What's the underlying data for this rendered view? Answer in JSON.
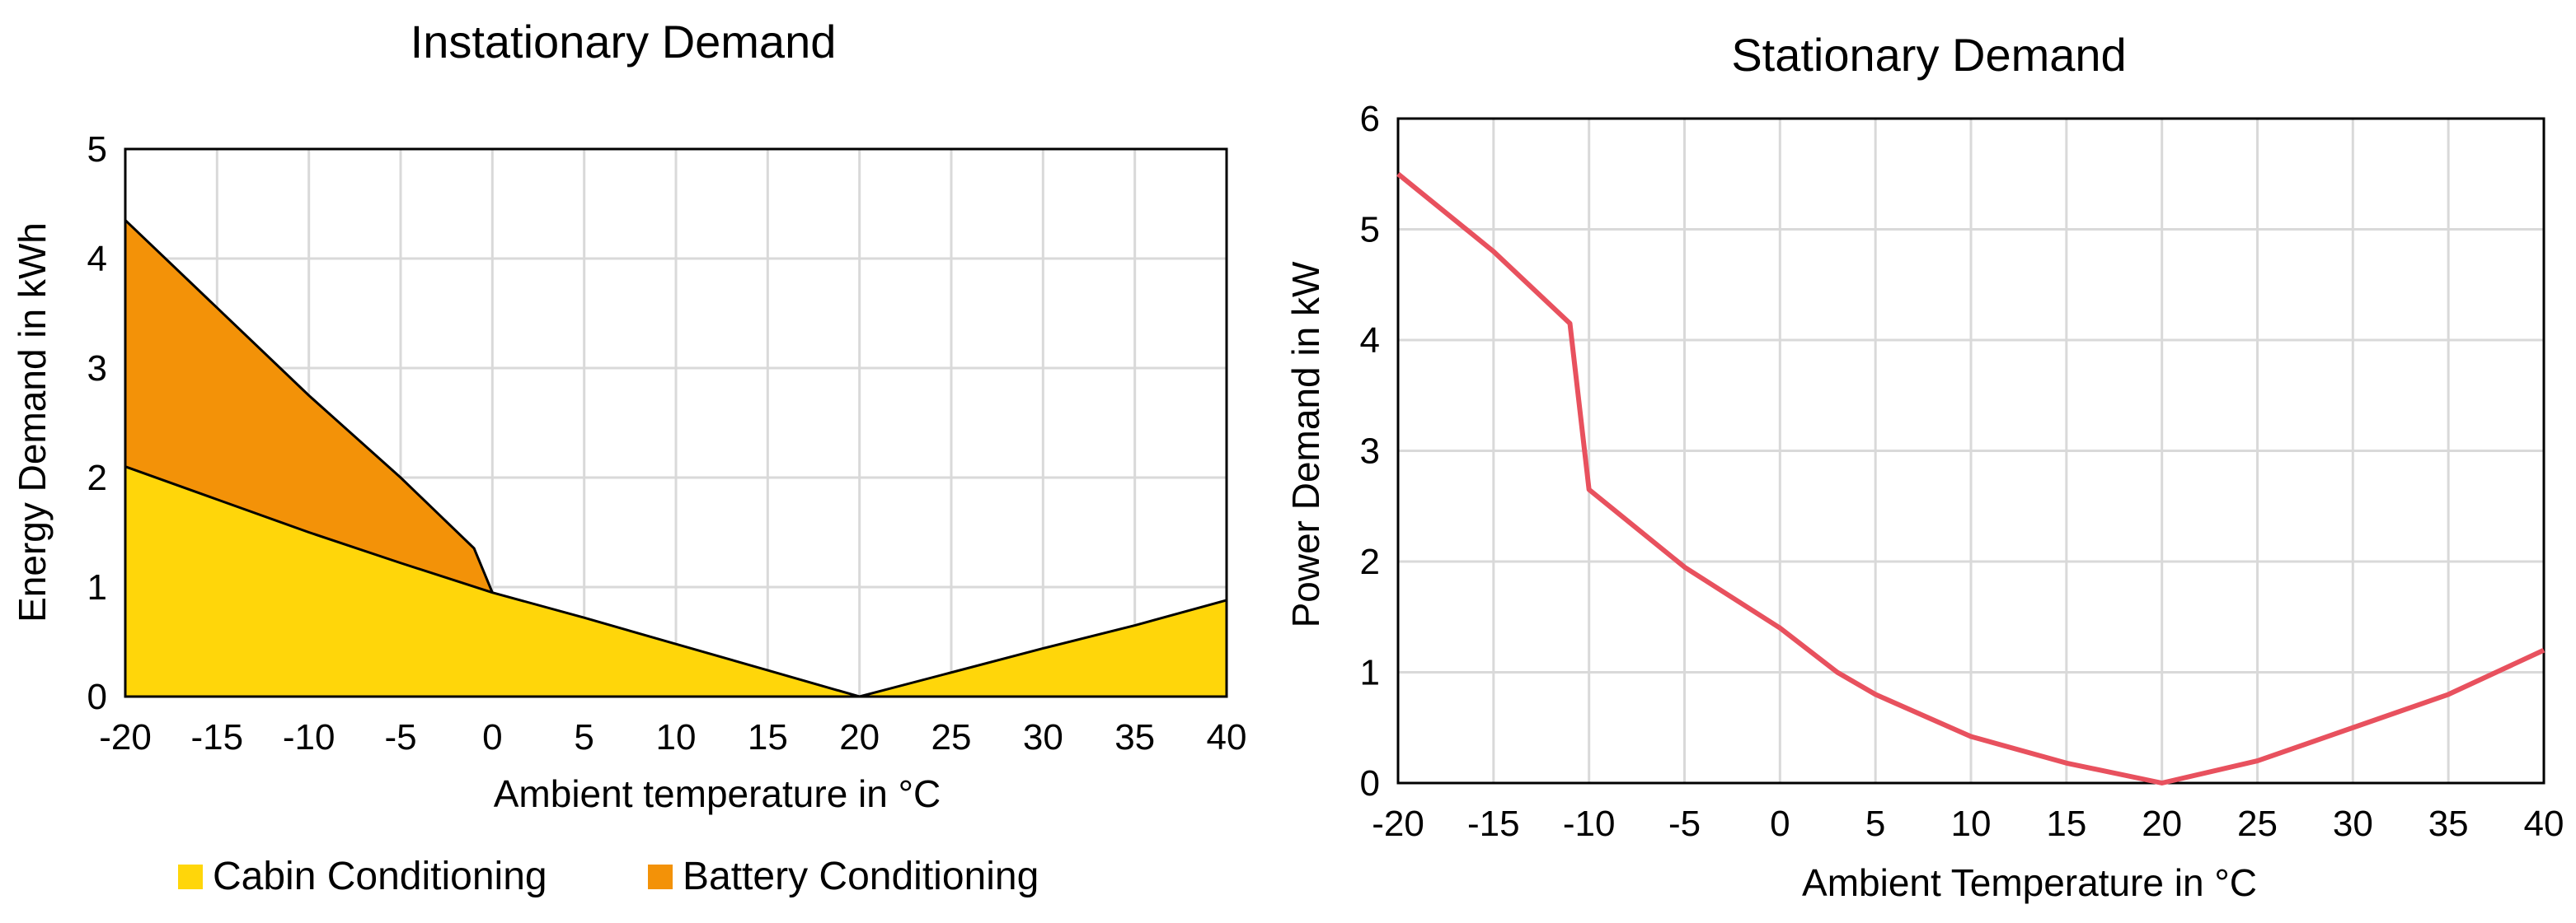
{
  "colors": {
    "cabin": "#FFD60A",
    "battery": "#F39208",
    "line": "#E8515E",
    "grid": "#d9d9d9"
  },
  "chart_data": [
    {
      "type": "area",
      "stacked": true,
      "title": "Instationary Demand",
      "xlabel": "Ambient temperature in °C",
      "ylabel": "Energy Demand in kWh",
      "xlim": [
        -20,
        40
      ],
      "ylim": [
        0,
        5
      ],
      "xticks": [
        -20,
        -15,
        -10,
        -5,
        0,
        5,
        10,
        15,
        20,
        25,
        30,
        35,
        40
      ],
      "yticks": [
        0,
        1,
        2,
        3,
        4,
        5
      ],
      "grid": true,
      "legend_position": "bottom",
      "series": [
        {
          "name": "Cabin Conditioning",
          "color": "#FFD60A",
          "x": [
            -20,
            -15,
            -10,
            -5,
            0,
            5,
            10,
            15,
            20,
            25,
            30,
            35,
            40
          ],
          "y": [
            2.1,
            1.8,
            1.5,
            1.22,
            0.95,
            0.72,
            0.48,
            0.24,
            0.0,
            0.22,
            0.44,
            0.65,
            0.88
          ]
        },
        {
          "name": "Battery Conditioning",
          "color": "#F39208",
          "x": [
            -20,
            -15,
            -10,
            -5,
            -1,
            0
          ],
          "y": [
            2.25,
            1.75,
            1.25,
            0.78,
            0.35,
            0.0
          ]
        }
      ]
    },
    {
      "type": "line",
      "title": "Stationary Demand",
      "xlabel": "Ambient Temperature in °C",
      "ylabel": "Power Demand in kW",
      "xlim": [
        -20,
        40
      ],
      "ylim": [
        0,
        6
      ],
      "xticks": [
        -20,
        -15,
        -10,
        -5,
        0,
        5,
        10,
        15,
        20,
        25,
        30,
        35,
        40
      ],
      "yticks": [
        0,
        1,
        2,
        3,
        4,
        5,
        6
      ],
      "grid": true,
      "series": [
        {
          "name": "Stationary Demand",
          "color": "#E8515E",
          "x": [
            -20,
            -15,
            -11,
            -10,
            -5,
            0,
            3,
            5,
            10,
            15,
            20,
            25,
            30,
            35,
            40
          ],
          "y": [
            5.5,
            4.8,
            4.15,
            2.65,
            1.95,
            1.4,
            1.0,
            0.8,
            0.42,
            0.18,
            0.0,
            0.2,
            0.5,
            0.8,
            1.2
          ]
        }
      ]
    }
  ]
}
